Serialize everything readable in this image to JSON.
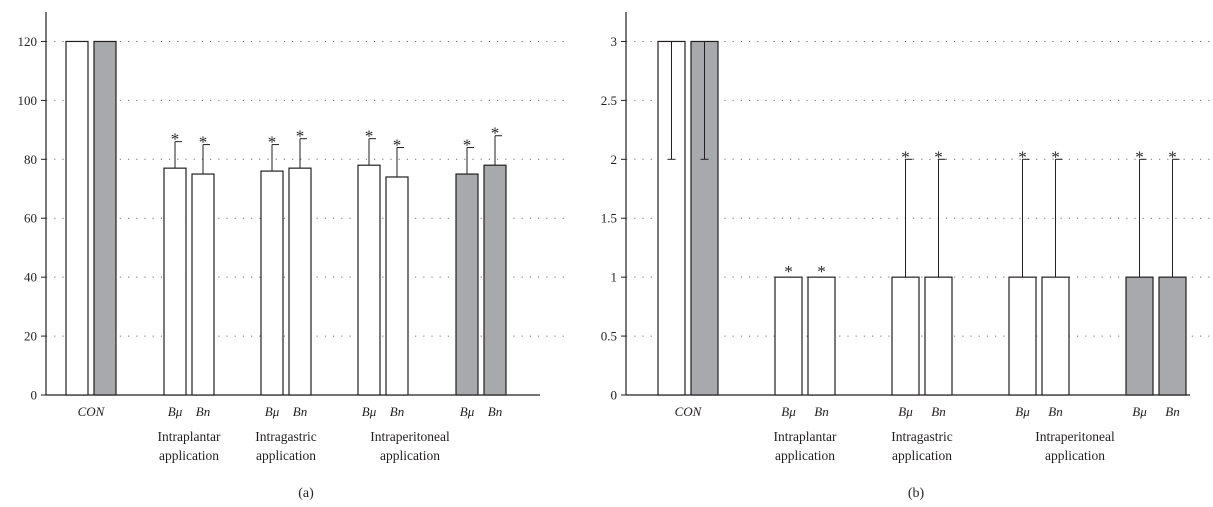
{
  "chart_data": [
    {
      "type": "bar",
      "panel_label": "(a)",
      "ylim": [
        0,
        130
      ],
      "yticks": [
        "0",
        "20",
        "40",
        "60",
        "80",
        "100",
        "120"
      ],
      "ytick_values": [
        0,
        20,
        40,
        60,
        80,
        100,
        120
      ],
      "grid": "dotted horizontal",
      "groups": [
        {
          "label": "CON",
          "label_lines": [],
          "bars": [
            {
              "cat": "",
              "value": 120,
              "err": 0,
              "fill": "white",
              "star": false
            },
            {
              "cat": "",
              "value": 120,
              "err": 0,
              "fill": "gray",
              "star": false
            }
          ]
        },
        {
          "label": "",
          "label_lines": [
            "Intraplantar",
            "application"
          ],
          "bars": [
            {
              "cat": "Bμ",
              "value": 77,
              "err": 9,
              "fill": "white",
              "star": true
            },
            {
              "cat": "Bn",
              "value": 75,
              "err": 10,
              "fill": "white",
              "star": true
            }
          ]
        },
        {
          "label": "",
          "label_lines": [
            "Intragastric",
            "application"
          ],
          "bars": [
            {
              "cat": "Bμ",
              "value": 76,
              "err": 9,
              "fill": "white",
              "star": true
            },
            {
              "cat": "Bn",
              "value": 77,
              "err": 10,
              "fill": "white",
              "star": true
            }
          ]
        },
        {
          "label": "",
          "label_lines": [],
          "bars": [
            {
              "cat": "Bμ",
              "value": 78,
              "err": 9,
              "fill": "white",
              "star": true
            },
            {
              "cat": "Bn",
              "value": 74,
              "err": 10,
              "fill": "white",
              "star": true
            }
          ]
        },
        {
          "label": "",
          "label_lines": [],
          "bars": [
            {
              "cat": "Bμ",
              "value": 75,
              "err": 9,
              "fill": "gray",
              "star": true
            },
            {
              "cat": "Bn",
              "value": 78,
              "err": 10,
              "fill": "gray",
              "star": true
            }
          ]
        }
      ],
      "spanning_label_lines": [
        "Intraperitoneal",
        "application"
      ]
    },
    {
      "type": "bar",
      "panel_label": "(b)",
      "ylim": [
        0,
        3.25
      ],
      "yticks": [
        "0",
        "0.5",
        "1",
        "1.5",
        "2",
        "2.5",
        "3"
      ],
      "ytick_values": [
        0,
        0.5,
        1,
        1.5,
        2,
        2.5,
        3
      ],
      "grid": "dotted horizontal",
      "groups": [
        {
          "label": "CON",
          "label_lines": [],
          "bars": [
            {
              "cat": "",
              "value": 3,
              "err": 1,
              "err_dir": "down",
              "fill": "white",
              "star": false
            },
            {
              "cat": "",
              "value": 3,
              "err": 1,
              "err_dir": "down",
              "fill": "gray",
              "star": false
            }
          ]
        },
        {
          "label": "",
          "label_lines": [
            "Intraplantar",
            "application"
          ],
          "bars": [
            {
              "cat": "Bμ",
              "value": 1,
              "err": 0,
              "fill": "white",
              "star": true
            },
            {
              "cat": "Bn",
              "value": 1,
              "err": 0,
              "fill": "white",
              "star": true
            }
          ]
        },
        {
          "label": "",
          "label_lines": [
            "Intragastric",
            "application"
          ],
          "bars": [
            {
              "cat": "Bμ",
              "value": 1,
              "err": 1,
              "fill": "white",
              "star": true
            },
            {
              "cat": "Bn",
              "value": 1,
              "err": 1,
              "fill": "white",
              "star": true
            }
          ]
        },
        {
          "label": "",
          "label_lines": [],
          "bars": [
            {
              "cat": "Bμ",
              "value": 1,
              "err": 1,
              "fill": "white",
              "star": true
            },
            {
              "cat": "Bn",
              "value": 1,
              "err": 1,
              "fill": "white",
              "star": true
            }
          ]
        },
        {
          "label": "",
          "label_lines": [],
          "bars": [
            {
              "cat": "Bμ",
              "value": 1,
              "err": 1,
              "fill": "gray",
              "star": true
            },
            {
              "cat": "Bn",
              "value": 1,
              "err": 1,
              "fill": "gray",
              "star": true
            }
          ]
        }
      ],
      "spanning_label_lines": [
        "Intraperitoneal",
        "application"
      ]
    }
  ],
  "colors": {
    "white_bar": "#ffffff",
    "gray_bar": "#a7a9ac",
    "ink": "#231f20",
    "grid": "#6d6e71"
  },
  "significance_marker": "*"
}
